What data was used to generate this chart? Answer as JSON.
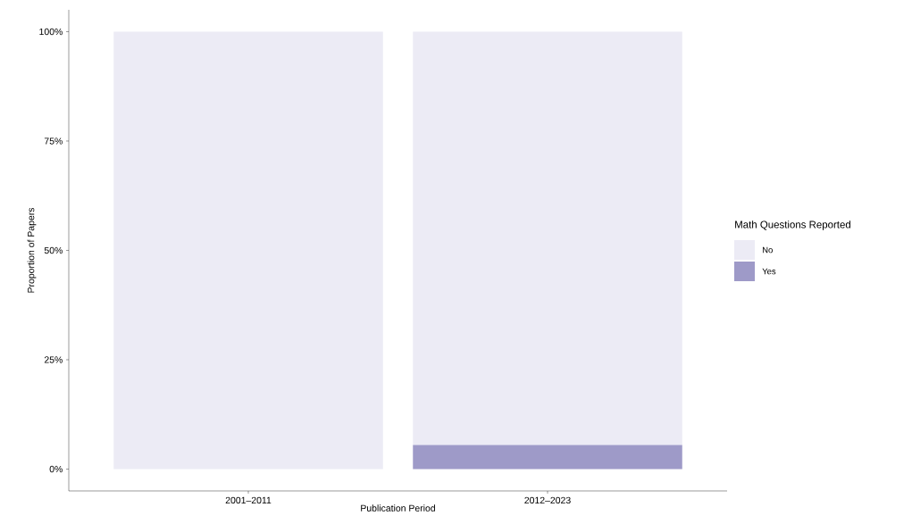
{
  "chart_data": {
    "type": "bar",
    "stacked": true,
    "xlabel": "Publication Period",
    "ylabel": "Proportion of Papers",
    "legend_title": "Math Questions Reported",
    "categories": [
      "2001–2011",
      "2012–2023"
    ],
    "series": [
      {
        "name": "Yes",
        "color": "#9e9ac8",
        "values": [
          0,
          5.5
        ]
      },
      {
        "name": "No",
        "color": "#ecebf5",
        "values": [
          100,
          94.5
        ]
      }
    ],
    "ylim": [
      -5,
      105
    ],
    "yticks": [
      {
        "value": 0,
        "label": "0%"
      },
      {
        "value": 25,
        "label": "25%"
      },
      {
        "value": 50,
        "label": "50%"
      },
      {
        "value": 75,
        "label": "75%"
      },
      {
        "value": 100,
        "label": "100%"
      }
    ],
    "grid": false,
    "legend": "right"
  }
}
